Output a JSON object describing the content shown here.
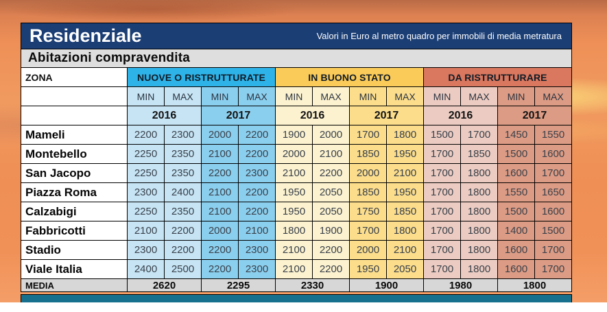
{
  "header": {
    "title": "Residenziale",
    "tagline": "Valori in Euro al metro quadro per immobili di media metratura",
    "section": "Abitazioni compravendita"
  },
  "palette": {
    "navy_header": "#1b3e75",
    "group_headers": [
      "#2eb3e8",
      "#fbcb59",
      "#d9775f"
    ],
    "pair_cells": [
      "#c6e4f4",
      "#8bcfee",
      "#fcf2cf",
      "#fbdd8c",
      "#ecccc2",
      "#dc9b84"
    ],
    "media_gray": "#d7d7d7",
    "subtitle_gray": "#dedede",
    "next_section_teal": "#17708d"
  },
  "chart_data": {
    "type": "table",
    "zona_header": "ZONA",
    "min_label": "MIN",
    "max_label": "MAX",
    "years": [
      "2016",
      "2017"
    ],
    "groups": [
      {
        "label": "NUOVE O RISTRUTTURATE"
      },
      {
        "label": "IN BUONO STATO"
      },
      {
        "label": "DA RISTRUTTURARE"
      }
    ],
    "rows": [
      {
        "zona": "Mameli",
        "values": [
          2200,
          2300,
          2000,
          2200,
          1900,
          2000,
          1700,
          1800,
          1500,
          1700,
          1450,
          1550
        ]
      },
      {
        "zona": "Montebello",
        "values": [
          2250,
          2350,
          2100,
          2200,
          2000,
          2100,
          1850,
          1950,
          1700,
          1850,
          1500,
          1600
        ]
      },
      {
        "zona": "San Jacopo",
        "values": [
          2250,
          2350,
          2200,
          2300,
          2100,
          2200,
          2000,
          2100,
          1700,
          1800,
          1600,
          1700
        ]
      },
      {
        "zona": "Piazza Roma",
        "values": [
          2300,
          2400,
          2100,
          2200,
          1950,
          2050,
          1850,
          1950,
          1700,
          1800,
          1550,
          1650
        ]
      },
      {
        "zona": "Calzabigi",
        "values": [
          2250,
          2350,
          2100,
          2200,
          1950,
          2050,
          1750,
          1850,
          1700,
          1800,
          1500,
          1600
        ]
      },
      {
        "zona": "Fabbricotti",
        "values": [
          2100,
          2200,
          2000,
          2100,
          1800,
          1900,
          1700,
          1800,
          1700,
          1800,
          1400,
          1500
        ]
      },
      {
        "zona": "Stadio",
        "values": [
          2300,
          2200,
          2200,
          2300,
          2100,
          2200,
          2000,
          2100,
          1700,
          1800,
          1600,
          1700
        ]
      },
      {
        "zona": "Viale Italia",
        "values": [
          2400,
          2500,
          2200,
          2300,
          2100,
          2200,
          1950,
          2050,
          1700,
          1800,
          1600,
          1700
        ]
      }
    ],
    "media": {
      "label": "MEDIA",
      "values": [
        2620,
        2295,
        2330,
        1900,
        1980,
        1800
      ]
    }
  }
}
